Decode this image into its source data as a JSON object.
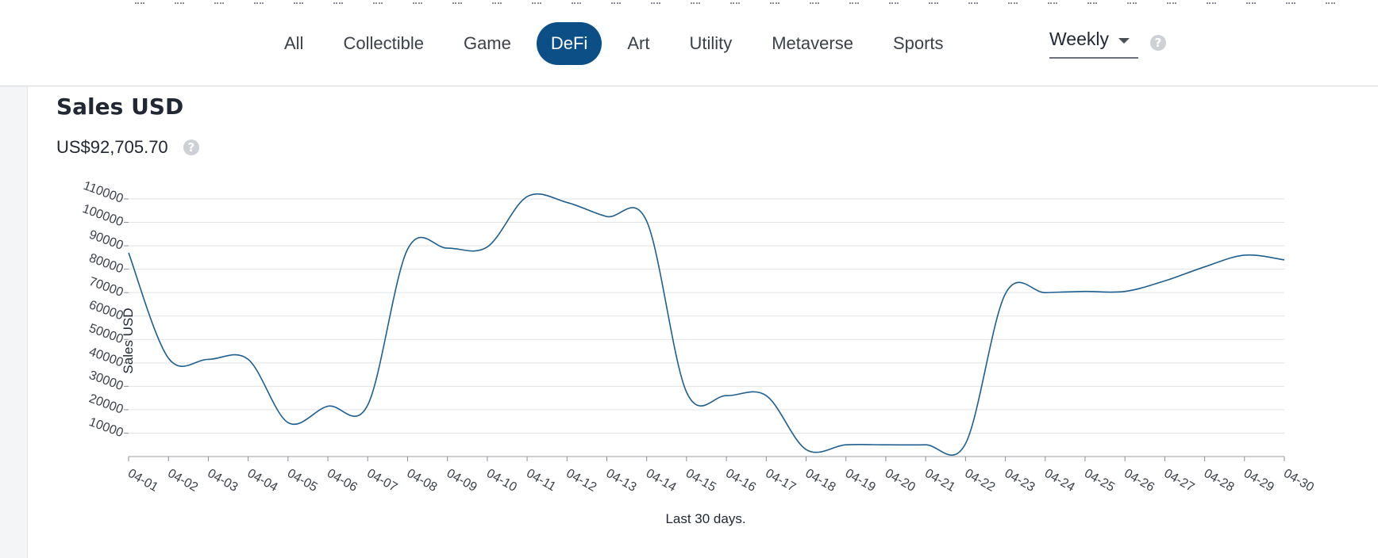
{
  "nav": {
    "tabs": [
      {
        "label": "All",
        "active": false
      },
      {
        "label": "Collectible",
        "active": false
      },
      {
        "label": "Game",
        "active": false
      },
      {
        "label": "DeFi",
        "active": true
      },
      {
        "label": "Art",
        "active": false
      },
      {
        "label": "Utility",
        "active": false
      },
      {
        "label": "Metaverse",
        "active": false
      },
      {
        "label": "Sports",
        "active": false
      }
    ],
    "period": {
      "value": "Weekly"
    }
  },
  "colors": {
    "accent": "#0b4f86",
    "line": "#1f5f8f",
    "grid": "#e1e3e6"
  },
  "summary": {
    "title": "Sales USD",
    "total": "US$92,705.70"
  },
  "chart_data": {
    "type": "line",
    "xlabel": "Last 30 days.",
    "ylabel": "Sales USD",
    "ylim": [
      0,
      110000
    ],
    "yticks": [
      10000,
      20000,
      30000,
      40000,
      50000,
      60000,
      70000,
      80000,
      90000,
      100000,
      110000
    ],
    "grid": true,
    "legend": "none",
    "x": [
      "04-01",
      "04-02",
      "04-03",
      "04-04",
      "04-05",
      "04-06",
      "04-07",
      "04-08",
      "04-09",
      "04-10",
      "04-11",
      "04-12",
      "04-13",
      "04-14",
      "04-15",
      "04-16",
      "04-17",
      "04-18",
      "04-19",
      "04-20",
      "04-21",
      "04-22",
      "04-23",
      "04-24",
      "04-25",
      "04-26",
      "04-27",
      "04-28",
      "04-29",
      "04-30"
    ],
    "series": [
      {
        "values": [
          87000,
          42000,
          41500,
          41500,
          14500,
          21500,
          22000,
          88500,
          89000,
          89500,
          111000,
          108500,
          102500,
          100500,
          27500,
          26000,
          26000,
          3000,
          5000,
          5000,
          5000,
          5500,
          69500,
          70000,
          70500,
          70500,
          75000,
          81000,
          86000,
          84000
        ]
      }
    ]
  }
}
